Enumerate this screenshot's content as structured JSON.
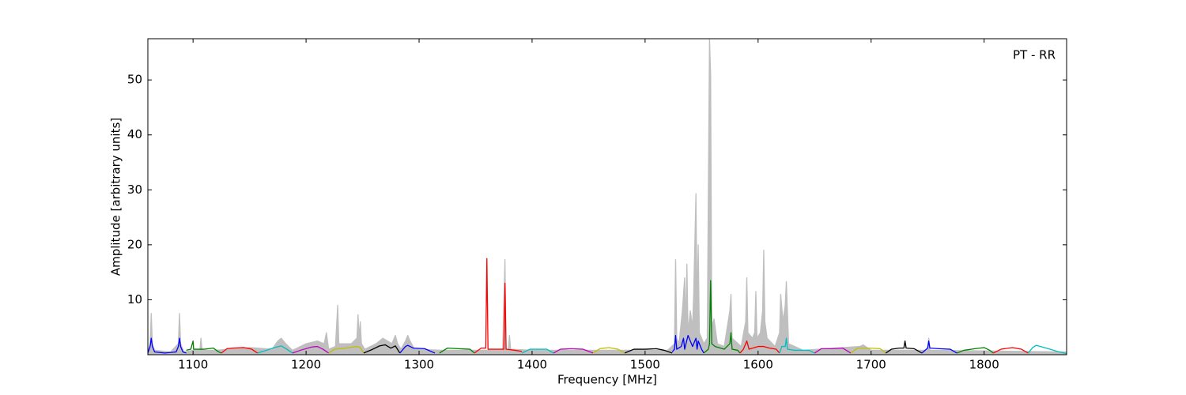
{
  "chart_data": {
    "type": "line",
    "annotation": "PT - RR",
    "xlabel": "Frequency [MHz]",
    "ylabel": "Amplitude [arbitrary units]",
    "xlim": [
      1060,
      1873
    ],
    "ylim": [
      0,
      57.5
    ],
    "xticks": [
      1100,
      1200,
      1300,
      1400,
      1500,
      1600,
      1700,
      1800
    ],
    "yticks": [
      10,
      20,
      30,
      40,
      50
    ],
    "grid": false,
    "series": [
      {
        "color": "#bfbfbf",
        "filled": true,
        "x": [
          1060,
          1062,
          1063,
          1064,
          1066,
          1080,
          1087,
          1088,
          1089,
          1092,
          1100,
          1106,
          1107,
          1108,
          1120,
          1150,
          1170,
          1175,
          1178,
          1182,
          1188,
          1200,
          1210,
          1216,
          1218,
          1220,
          1226,
          1228,
          1229,
          1235,
          1240,
          1245,
          1246,
          1247,
          1248,
          1249,
          1252,
          1262,
          1268,
          1272,
          1276,
          1279,
          1281,
          1284,
          1288,
          1290,
          1292,
          1296,
          1320,
          1374,
          1376,
          1377,
          1379,
          1380,
          1381,
          1400,
          1520,
          1526,
          1527,
          1528,
          1530,
          1533,
          1535,
          1536,
          1537,
          1538,
          1540,
          1542,
          1543,
          1545,
          1546,
          1547,
          1548,
          1550,
          1552,
          1555,
          1557,
          1558,
          1559,
          1561,
          1562,
          1564,
          1570,
          1575,
          1576,
          1577,
          1585,
          1589,
          1590,
          1591,
          1595,
          1597,
          1598,
          1599,
          1602,
          1604,
          1605,
          1606,
          1608,
          1615,
          1619,
          1620,
          1622,
          1624,
          1625,
          1627,
          1640,
          1690,
          1693,
          1700,
          1750,
          1751,
          1752,
          1873
        ],
        "values": [
          0.5,
          2,
          7.5,
          2,
          0.8,
          0.5,
          2,
          7.5,
          2,
          0.5,
          0.8,
          0.8,
          3,
          0.8,
          0.8,
          1.3,
          1,
          2.5,
          3,
          2,
          0.8,
          2,
          2.5,
          2,
          4,
          1,
          1.5,
          9,
          2,
          2,
          2,
          3,
          7.3,
          3,
          6,
          2,
          1,
          2,
          3,
          2.5,
          2,
          3.5,
          2,
          1,
          2.5,
          3.5,
          2.5,
          1,
          0.8,
          0.8,
          17.3,
          1,
          1,
          3.5,
          1,
          0.8,
          0.8,
          2,
          17.3,
          3,
          2,
          8,
          14,
          5,
          16.5,
          4,
          8,
          5,
          11,
          29.3,
          8,
          20,
          4,
          3,
          2,
          3,
          57.5,
          51,
          5,
          6.5,
          5,
          2,
          1.5,
          8,
          11,
          3,
          1.5,
          6,
          14,
          4,
          3,
          4,
          11.5,
          3,
          4,
          8,
          19,
          6,
          3,
          1.5,
          4,
          11,
          6,
          9,
          13.3,
          2,
          0.8,
          1.5,
          1.8,
          0.8,
          0.8,
          3,
          0.8,
          0.5
        ]
      },
      {
        "color": "#0000ff",
        "x": [
          1060,
          1062,
          1063,
          1064,
          1066,
          1075,
          1085,
          1087,
          1088,
          1089,
          1091,
          1094
        ],
        "values": [
          0.3,
          1.5,
          3,
          1.5,
          0.5,
          0.3,
          0.5,
          1.5,
          3,
          1.5,
          0.5,
          0.3
        ]
      },
      {
        "color": "#008000",
        "x": [
          1094,
          1098,
          1100,
          1100.5,
          1101,
          1110,
          1118,
          1122,
          1125
        ],
        "values": [
          0.8,
          1,
          2.5,
          1,
          1,
          1,
          1.2,
          0.6,
          0.3
        ]
      },
      {
        "color": "#ff0000",
        "x": [
          1125,
          1130,
          1135,
          1145,
          1152,
          1157
        ],
        "values": [
          0.3,
          1.1,
          1.2,
          1.3,
          1,
          0.3
        ]
      },
      {
        "color": "#00bfbf",
        "x": [
          1157,
          1165,
          1172,
          1178,
          1183,
          1188
        ],
        "values": [
          0.3,
          0.8,
          1.3,
          1.6,
          1,
          0.3
        ]
      },
      {
        "color": "#bf00bf",
        "x": [
          1188,
          1195,
          1205,
          1210,
          1215,
          1220
        ],
        "values": [
          0.3,
          0.8,
          1.4,
          1.5,
          1,
          0.3
        ]
      },
      {
        "color": "#bfbf00",
        "x": [
          1220,
          1225,
          1235,
          1245,
          1248,
          1251
        ],
        "values": [
          0.3,
          1,
          1.2,
          1.5,
          1.3,
          0.3
        ]
      },
      {
        "color": "#000000",
        "x": [
          1251,
          1258,
          1265,
          1270,
          1275,
          1279,
          1283
        ],
        "values": [
          0.3,
          0.9,
          1.6,
          1.8,
          1.2,
          1.6,
          0.3
        ]
      },
      {
        "color": "#0000ff",
        "x": [
          1283,
          1288,
          1290,
          1295,
          1305,
          1314
        ],
        "values": [
          0.3,
          1.5,
          1.7,
          1.2,
          1.1,
          0.3
        ]
      },
      {
        "color": "#008000",
        "x": [
          1318,
          1325,
          1335,
          1345,
          1349
        ],
        "values": [
          0.3,
          1.2,
          1.1,
          1,
          0.3
        ]
      },
      {
        "color": "#ff0000",
        "x": [
          1349,
          1355,
          1359,
          1360,
          1361,
          1365,
          1375,
          1376,
          1377,
          1385,
          1391
        ],
        "values": [
          0.3,
          1.2,
          1.2,
          17.5,
          1,
          1,
          1,
          13,
          1,
          0.8,
          0.6
        ]
      },
      {
        "color": "#00bfbf",
        "x": [
          1391,
          1398,
          1405,
          1413,
          1419
        ],
        "values": [
          0.3,
          1,
          1,
          1,
          0.3
        ]
      },
      {
        "color": "#bf00bf",
        "x": [
          1419,
          1425,
          1435,
          1445,
          1454
        ],
        "values": [
          0.3,
          1,
          1.1,
          1,
          0.3
        ]
      },
      {
        "color": "#bfbf00",
        "x": [
          1454,
          1460,
          1468,
          1476,
          1482
        ],
        "values": [
          0.3,
          1.1,
          1.3,
          1,
          0.3
        ]
      },
      {
        "color": "#000000",
        "x": [
          1482,
          1490,
          1500,
          1510,
          1517,
          1524
        ],
        "values": [
          0.3,
          1,
          1,
          1.1,
          0.8,
          0.3
        ]
      },
      {
        "color": "#0000ff",
        "x": [
          1524,
          1526,
          1527,
          1528,
          1532,
          1534,
          1535,
          1538,
          1542,
          1545,
          1546,
          1547,
          1550,
          1552
        ],
        "values": [
          0.5,
          1,
          3.5,
          1,
          1.5,
          3,
          1,
          3.5,
          1.5,
          3,
          1,
          2.5,
          1,
          0.3
        ]
      },
      {
        "color": "#008000",
        "x": [
          1552,
          1556,
          1557,
          1558,
          1559,
          1562,
          1570,
          1575,
          1576,
          1577,
          1582,
          1584
        ],
        "values": [
          0.3,
          1,
          2,
          13.5,
          2,
          1.5,
          1,
          2,
          4,
          1,
          0.8,
          0.3
        ]
      },
      {
        "color": "#ff0000",
        "x": [
          1584,
          1587,
          1590,
          1592,
          1600,
          1605,
          1610,
          1616,
          1619
        ],
        "values": [
          0.3,
          1,
          2.5,
          1,
          1.5,
          1.5,
          1.2,
          1,
          0.3
        ]
      },
      {
        "color": "#00bfbf",
        "x": [
          1619,
          1621,
          1624,
          1625,
          1626,
          1632,
          1645,
          1650
        ],
        "values": [
          0.3,
          1.5,
          1.5,
          3,
          1,
          0.8,
          0.8,
          0.3
        ]
      },
      {
        "color": "#bf00bf",
        "x": [
          1650,
          1656,
          1665,
          1675,
          1682
        ],
        "values": [
          0.3,
          1.1,
          1.1,
          1.2,
          0.3
        ]
      },
      {
        "color": "#bfbf00",
        "x": [
          1682,
          1688,
          1698,
          1708,
          1713
        ],
        "values": [
          0.3,
          1.2,
          1.2,
          1.1,
          0.3
        ]
      },
      {
        "color": "#000000",
        "x": [
          1713,
          1718,
          1725,
          1729,
          1730,
          1731,
          1738,
          1745
        ],
        "values": [
          0.3,
          1,
          1.2,
          1.2,
          2.5,
          1.2,
          1.1,
          0.3
        ]
      },
      {
        "color": "#0000ff",
        "x": [
          1745,
          1750,
          1751,
          1752,
          1760,
          1770,
          1776
        ],
        "values": [
          0.3,
          1.2,
          2.5,
          1.2,
          1.1,
          1,
          0.3
        ]
      },
      {
        "color": "#008000",
        "x": [
          1776,
          1782,
          1792,
          1800,
          1805,
          1808
        ],
        "values": [
          0.3,
          0.8,
          1.1,
          1.3,
          0.8,
          0.3
        ]
      },
      {
        "color": "#ff0000",
        "x": [
          1808,
          1815,
          1825,
          1833,
          1839
        ],
        "values": [
          0.3,
          1,
          1.3,
          1,
          0.3
        ]
      },
      {
        "color": "#00bfbf",
        "x": [
          1839,
          1843,
          1846,
          1855,
          1865,
          1873
        ],
        "values": [
          0.3,
          1.3,
          1.7,
          1.2,
          0.6,
          0.2
        ]
      }
    ]
  }
}
